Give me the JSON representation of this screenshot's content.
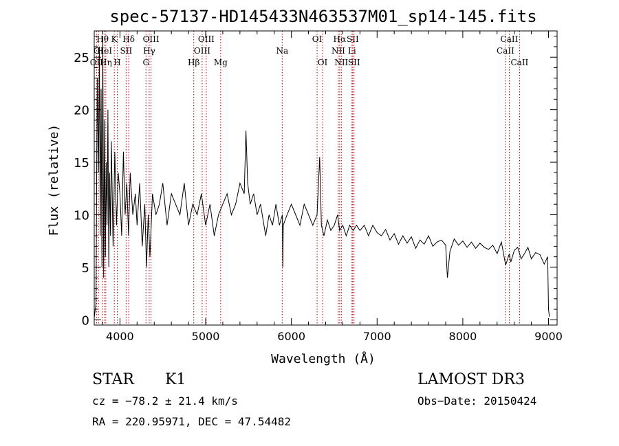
{
  "chart_data": {
    "type": "line",
    "title": "spec-57137-HD145433N463537M01_sp14-145.fits",
    "xlabel": "Wavelength (Å)",
    "ylabel": "Flux (relative)",
    "xlim": [
      3700,
      9100
    ],
    "ylim": [
      -0.5,
      27.5
    ],
    "xticks": [
      4000,
      5000,
      6000,
      7000,
      8000,
      9000
    ],
    "yticks": [
      0,
      5,
      10,
      15,
      20,
      25
    ],
    "grid": false,
    "series": [
      {
        "name": "flux",
        "x": [
          3700,
          3720,
          3735,
          3750,
          3760,
          3770,
          3780,
          3790,
          3800,
          3810,
          3820,
          3830,
          3840,
          3850,
          3860,
          3870,
          3880,
          3890,
          3900,
          3920,
          3940,
          3960,
          3980,
          4000,
          4020,
          4040,
          4060,
          4080,
          4100,
          4120,
          4150,
          4180,
          4200,
          4230,
          4260,
          4290,
          4310,
          4330,
          4350,
          4380,
          4420,
          4460,
          4500,
          4550,
          4600,
          4650,
          4700,
          4750,
          4800,
          4850,
          4900,
          4950,
          5000,
          5050,
          5100,
          5150,
          5200,
          5250,
          5300,
          5350,
          5400,
          5450,
          5470,
          5490,
          5520,
          5560,
          5600,
          5640,
          5680,
          5700,
          5740,
          5780,
          5820,
          5860,
          5895,
          5900,
          5905,
          5950,
          6000,
          6050,
          6100,
          6150,
          6200,
          6250,
          6300,
          6330,
          6350,
          6380,
          6420,
          6460,
          6500,
          6540,
          6563,
          6600,
          6640,
          6680,
          6720,
          6760,
          6800,
          6850,
          6900,
          6950,
          7000,
          7050,
          7100,
          7150,
          7200,
          7250,
          7300,
          7350,
          7400,
          7450,
          7500,
          7550,
          7600,
          7650,
          7700,
          7750,
          7800,
          7820,
          7850,
          7900,
          7950,
          8000,
          8050,
          8100,
          8150,
          8200,
          8250,
          8300,
          8350,
          8400,
          8450,
          8500,
          8542,
          8560,
          8600,
          8640,
          8680,
          8720,
          8760,
          8800,
          8850,
          8900,
          8950,
          8990,
          9000,
          9010
        ],
        "values": [
          0.2,
          1.5,
          23,
          14,
          26,
          8,
          22,
          5,
          27,
          4,
          19,
          6,
          15,
          9,
          20,
          5,
          14,
          8,
          17,
          7,
          16,
          9,
          14,
          12,
          8,
          16,
          10,
          13,
          8,
          14,
          10,
          12,
          9,
          13,
          7,
          11,
          5,
          10,
          6,
          12,
          10,
          11,
          13,
          9,
          12,
          11,
          10,
          13,
          9,
          11,
          10,
          12,
          9,
          11,
          8,
          10,
          11,
          12,
          10,
          11,
          13,
          12,
          18,
          13,
          11,
          12,
          10,
          11,
          9,
          8,
          10,
          9,
          11,
          9,
          10,
          5,
          9,
          10,
          11,
          10,
          9,
          11,
          10,
          9,
          10,
          15.5,
          9,
          8,
          9.5,
          8.5,
          9,
          10,
          8.5,
          9,
          8,
          9,
          8.5,
          9,
          8.5,
          9,
          8,
          9,
          8.3,
          8,
          8.6,
          7.6,
          8.2,
          7.2,
          8,
          7.3,
          7.9,
          6.8,
          7.6,
          7.2,
          8,
          7,
          7.4,
          7.6,
          7.1,
          4,
          6.5,
          7.7,
          7.1,
          7.5,
          6.9,
          7.4,
          6.8,
          7.3,
          6.9,
          6.7,
          7.1,
          6.3,
          7.4,
          5.2,
          6.3,
          5.5,
          6.6,
          6.9,
          5.8,
          6.3,
          6.9,
          5.8,
          6.4,
          6.2,
          5.3,
          6,
          1,
          0.3
        ]
      }
    ],
    "lines": [
      {
        "wavelength": 3727,
        "label": "OII",
        "row": 2
      },
      {
        "wavelength": 3750,
        "label": "OI",
        "row": 1
      },
      {
        "wavelength": 3797,
        "label": "Hθ",
        "row": 0
      },
      {
        "wavelength": 3820,
        "label": "HeI",
        "row": 1
      },
      {
        "wavelength": 3835,
        "label": "Hη",
        "row": 2
      },
      {
        "wavelength": 3934,
        "label": "K",
        "row": 0
      },
      {
        "wavelength": 3969,
        "label": "H",
        "row": 2
      },
      {
        "wavelength": 4072,
        "label": "SII",
        "row": 1
      },
      {
        "wavelength": 4102,
        "label": "Hδ",
        "row": 0
      },
      {
        "wavelength": 4304,
        "label": "G",
        "row": 2
      },
      {
        "wavelength": 4341,
        "label": "Hγ",
        "row": 1
      },
      {
        "wavelength": 4363,
        "label": "OIII",
        "row": 0
      },
      {
        "wavelength": 4861,
        "label": "Hβ",
        "row": 2
      },
      {
        "wavelength": 4959,
        "label": "OIII",
        "row": 1
      },
      {
        "wavelength": 5007,
        "label": "OIII",
        "row": 0
      },
      {
        "wavelength": 5175,
        "label": "Mg",
        "row": 2
      },
      {
        "wavelength": 5893,
        "label": "Na",
        "row": 1
      },
      {
        "wavelength": 6300,
        "label": "OI",
        "row": 0
      },
      {
        "wavelength": 6364,
        "label": "OI",
        "row": 2
      },
      {
        "wavelength": 6548,
        "label": "NII",
        "row": 1
      },
      {
        "wavelength": 6563,
        "label": "Hα",
        "row": 0
      },
      {
        "wavelength": 6583,
        "label": "NII",
        "row": 2
      },
      {
        "wavelength": 6707,
        "label": "Li",
        "row": 1
      },
      {
        "wavelength": 6716,
        "label": "SII",
        "row": 0
      },
      {
        "wavelength": 6731,
        "label": "SII",
        "row": 2
      },
      {
        "wavelength": 8498,
        "label": "CaII",
        "row": 1
      },
      {
        "wavelength": 8542,
        "label": "CaII",
        "row": 0
      },
      {
        "wavelength": 8662,
        "label": "CaII",
        "row": 2
      }
    ]
  },
  "info": {
    "class": "STAR",
    "subclass": "K1",
    "survey": "LAMOST DR3",
    "redshift": "cz = −78.2 ± 21.4 km/s",
    "obs_date": "Obs−Date: 20150424",
    "coords": "RA = 220.95971, DEC =  47.54482"
  },
  "colors": {
    "spectrum": "#000000",
    "marker_line": "#b00000",
    "axis": "#000000"
  }
}
